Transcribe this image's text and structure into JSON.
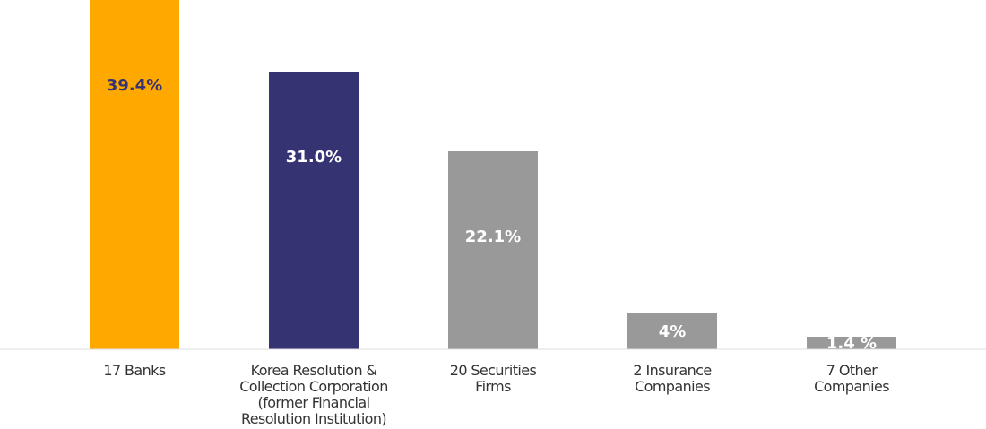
{
  "chart_data": {
    "type": "bar",
    "categories": [
      "17 Banks",
      "Korea Resolution & Collection Corporation (former Financial Resolution Institution)",
      "20 Securities Firms",
      "2 Insurance Companies",
      "7 Other Companies"
    ],
    "category_lines": [
      [
        "17 Banks"
      ],
      [
        "Korea Resolution &",
        "Collection Corporation",
        "(former Financial",
        "Resolution Institution)"
      ],
      [
        "20 Securities",
        "Firms"
      ],
      [
        "2 Insurance",
        "Companies"
      ],
      [
        "7 Other",
        "Companies"
      ]
    ],
    "values": [
      39.4,
      31.0,
      22.1,
      4,
      1.4
    ],
    "data_labels": [
      "39.4%",
      "31.0%",
      "22.1%",
      "4%",
      "1.4 %"
    ],
    "colors": [
      "#FFA800",
      "#363372",
      "#999999",
      "#999999",
      "#999999"
    ],
    "label_colors": [
      "#363372",
      "#ffffff",
      "#ffffff",
      "#ffffff",
      "#ffffff"
    ],
    "title": "",
    "xlabel": "",
    "ylabel": "",
    "ylim": [
      0,
      31.0
    ],
    "grid": false,
    "legend": "none"
  }
}
